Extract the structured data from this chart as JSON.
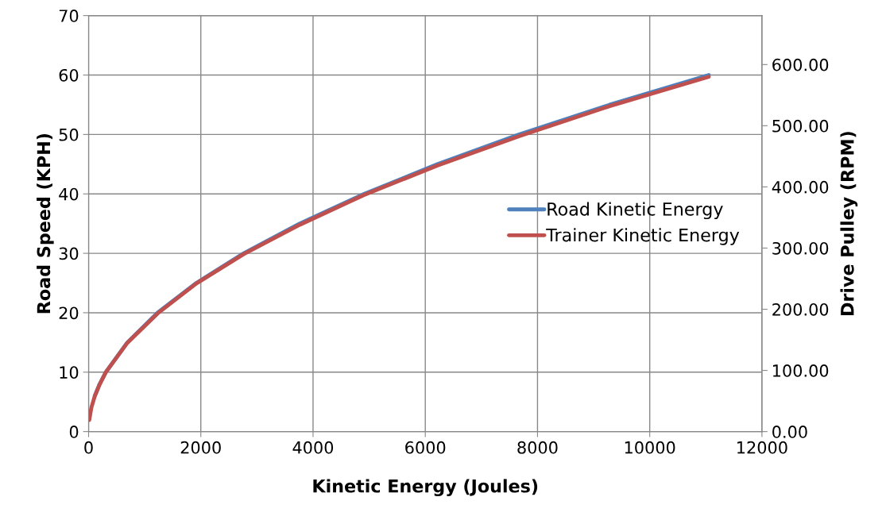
{
  "chart_data": {
    "type": "line",
    "xlabel": "Kinetic Energy (Joules)",
    "ylabel": "Road Speed (KPH)",
    "y2label": "Drive Pulley (RPM)",
    "xlim": [
      0,
      12000
    ],
    "xticks": [
      0,
      2000,
      4000,
      6000,
      8000,
      10000,
      12000
    ],
    "ylim": [
      0,
      70
    ],
    "yticks": [
      0,
      10,
      20,
      30,
      40,
      50,
      60,
      70
    ],
    "y2lim": [
      0,
      680
    ],
    "y2ticks": [
      {
        "value": 0,
        "label": "0.00"
      },
      {
        "value": 100,
        "label": "100.00"
      },
      {
        "value": 200,
        "label": "200.00"
      },
      {
        "value": 300,
        "label": "300.00"
      },
      {
        "value": 400,
        "label": "400.00"
      },
      {
        "value": 500,
        "label": "500.00"
      },
      {
        "value": 600,
        "label": "600.00"
      }
    ],
    "grid": true,
    "legend": "right",
    "marker": "none",
    "line_style": "solid",
    "series": [
      {
        "name": "Road Kinetic Energy",
        "color": "#4f81bd",
        "x": [
          110,
          196,
          307,
          690,
          1228,
          1919,
          2763,
          3761,
          4912,
          6217,
          7675,
          9287,
          11052
        ],
        "values": [
          6,
          8,
          10,
          15,
          20,
          25,
          30,
          35,
          40,
          45,
          50,
          55,
          60
        ]
      },
      {
        "name": "Trainer Kinetic Energy",
        "color": "#c0504d",
        "axis": "y2",
        "x": [
          12,
          49,
          110,
          196,
          307,
          690,
          1228,
          1919,
          2763,
          3761,
          4912,
          6217,
          7675,
          9287,
          11052
        ],
        "values": [
          19,
          39,
          58,
          77,
          97,
          145,
          193,
          242,
          290,
          338,
          387,
          435,
          483,
          532,
          580
        ]
      }
    ]
  }
}
